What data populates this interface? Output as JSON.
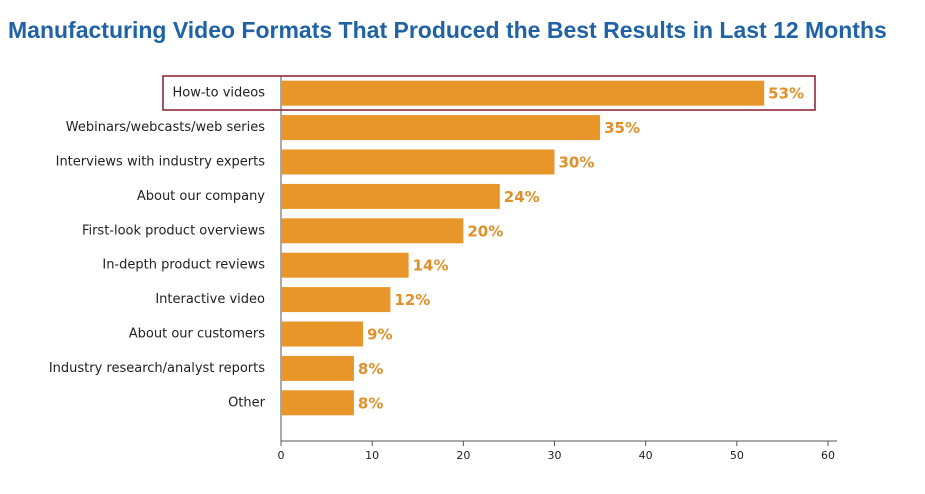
{
  "chart_data": {
    "type": "bar",
    "orientation": "horizontal",
    "title": "Manufacturing Video Formats That Produced the Best Results in Last 12 Months",
    "categories": [
      "How-to videos",
      "Webinars/webcasts/web series",
      "Interviews with industry experts",
      "About our company",
      "First-look product overviews",
      "In-depth product reviews",
      "Interactive video",
      "About our customers",
      "Industry research/analyst reports",
      "Other"
    ],
    "values": [
      53,
      35,
      30,
      24,
      20,
      14,
      12,
      9,
      8,
      8
    ],
    "value_labels": [
      "53%",
      "35%",
      "30%",
      "24%",
      "20%",
      "14%",
      "12%",
      "9%",
      "8%",
      "8%"
    ],
    "color": "#e8962a",
    "xlim": [
      0,
      60
    ],
    "xticks": [
      0,
      10,
      20,
      30,
      40,
      50,
      60
    ],
    "grid": false
  }
}
